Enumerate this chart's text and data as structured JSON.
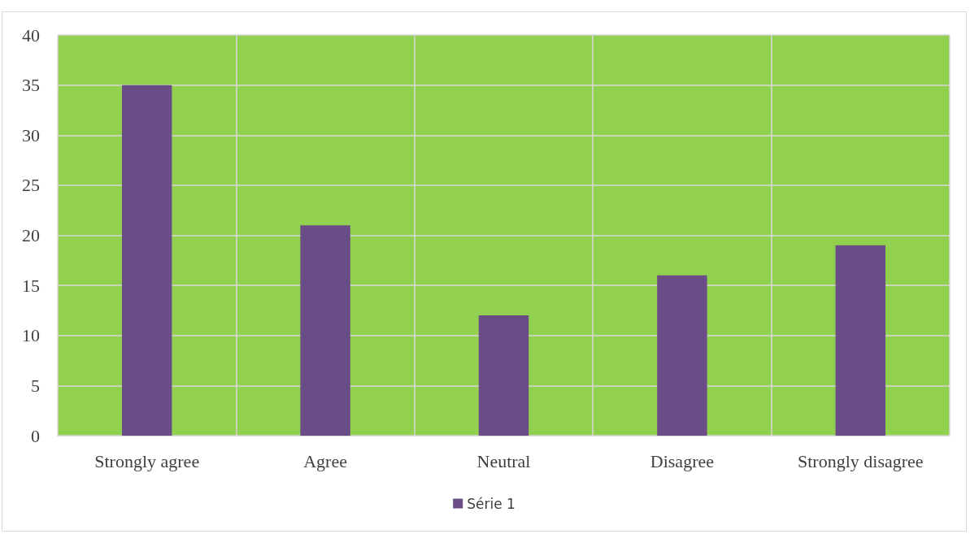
{
  "chart_data": {
    "type": "bar",
    "categories": [
      "Strongly agree",
      "Agree",
      "Neutral",
      "Disagree",
      "Strongly disagree"
    ],
    "series": [
      {
        "name": "Série 1",
        "color": "#6a4c87",
        "values": [
          35,
          21,
          12,
          16,
          19
        ]
      }
    ],
    "ylim": [
      0,
      40
    ],
    "yticks": [
      0,
      5,
      10,
      15,
      20,
      25,
      30,
      35,
      40
    ],
    "grid": true,
    "legend": "bottom"
  }
}
